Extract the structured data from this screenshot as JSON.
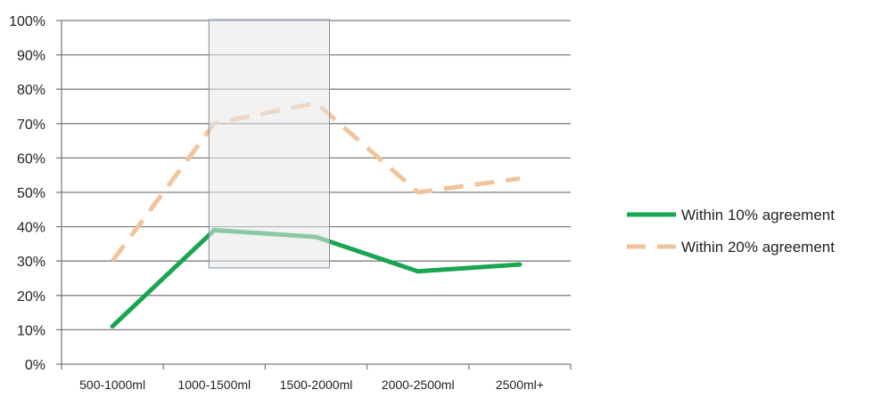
{
  "chart_data": {
    "type": "line",
    "categories": [
      "500-1000ml",
      "1000-1500ml",
      "1500-2000ml",
      "2000-2500ml",
      "2500ml+"
    ],
    "ylim": [
      0,
      100
    ],
    "y_ticks": [
      "0%",
      "10%",
      "20%",
      "30%",
      "40%",
      "50%",
      "60%",
      "70%",
      "80%",
      "90%",
      "100%"
    ],
    "grid": true,
    "legend_position": "right",
    "series": [
      {
        "name": "Within 10% agreement",
        "values": [
          11,
          39,
          37,
          27,
          29
        ],
        "color": "#1aa550",
        "style": "solid"
      },
      {
        "name": "Within 20% agreement",
        "values": [
          30,
          70,
          76,
          50,
          54
        ],
        "color": "#f2c49c",
        "style": "dashed"
      }
    ],
    "highlight": {
      "from_category": "1000-1500ml",
      "to_category": "1500-2000ml",
      "y_range": [
        28,
        100
      ],
      "fill": "#e8e8ea",
      "stroke": "#7f8fa6"
    }
  }
}
